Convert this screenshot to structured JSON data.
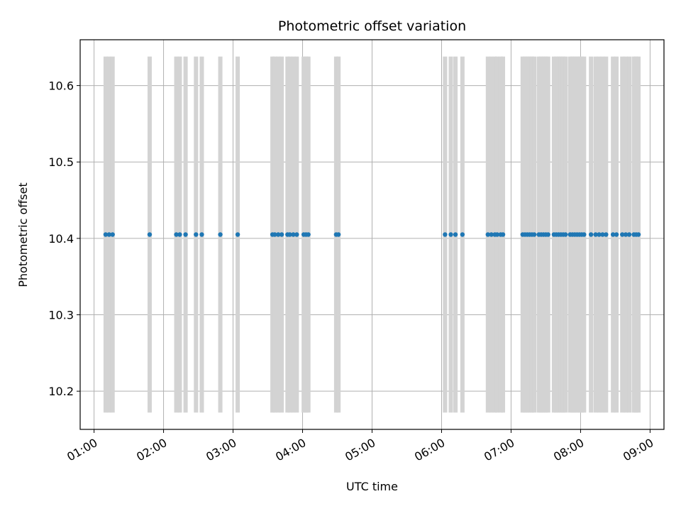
{
  "chart_data": {
    "type": "scatter",
    "title": "Photometric offset variation",
    "xlabel": "UTC time",
    "ylabel": "Photometric offset",
    "x_axis_type": "time",
    "xlim": [
      "00:48",
      "09:12"
    ],
    "ylim": [
      10.15,
      10.66
    ],
    "x_ticks": [
      "01:00",
      "02:00",
      "03:00",
      "04:00",
      "05:00",
      "06:00",
      "07:00",
      "08:00",
      "09:00"
    ],
    "y_ticks": [
      10.2,
      10.3,
      10.4,
      10.5,
      10.6
    ],
    "grid": true,
    "legend": "none",
    "colors": {
      "points": "#1f77b4",
      "bands": "#d3d3d3",
      "grid": "#b0b0b0"
    },
    "bands": {
      "y_range": [
        10.172,
        10.638
      ],
      "x": [
        "01:10",
        "01:13",
        "01:16",
        "01:48",
        "02:11",
        "02:14",
        "02:19",
        "02:28",
        "02:33",
        "02:49",
        "03:04",
        "03:34",
        "03:36",
        "03:39",
        "03:42",
        "03:47",
        "03:49",
        "03:52",
        "03:55",
        "04:01",
        "04:03",
        "04:05",
        "04:29",
        "04:31",
        "06:03",
        "06:08",
        "06:12",
        "06:18",
        "06:40",
        "06:43",
        "06:46",
        "06:48",
        "06:51",
        "06:53",
        "07:10",
        "07:12",
        "07:14",
        "07:16",
        "07:18",
        "07:20",
        "07:24",
        "07:26",
        "07:28",
        "07:30",
        "07:32",
        "07:37",
        "07:39",
        "07:41",
        "07:43",
        "07:45",
        "07:47",
        "07:51",
        "07:53",
        "07:55",
        "07:57",
        "07:59",
        "08:01",
        "08:03",
        "08:09",
        "08:13",
        "08:16",
        "08:19",
        "08:22",
        "08:28",
        "08:31",
        "08:36",
        "08:39",
        "08:42",
        "08:46",
        "08:48",
        "08:50"
      ]
    },
    "series": [
      {
        "x": [
          "01:10",
          "01:13",
          "01:16",
          "01:48",
          "02:11",
          "02:14",
          "02:19",
          "02:28",
          "02:33",
          "02:49",
          "03:04",
          "03:34",
          "03:36",
          "03:39",
          "03:42",
          "03:47",
          "03:49",
          "03:52",
          "03:55",
          "04:01",
          "04:03",
          "04:05",
          "04:29",
          "04:31",
          "06:03",
          "06:08",
          "06:12",
          "06:18",
          "06:40",
          "06:43",
          "06:46",
          "06:48",
          "06:51",
          "06:53",
          "07:10",
          "07:12",
          "07:14",
          "07:16",
          "07:18",
          "07:20",
          "07:24",
          "07:26",
          "07:28",
          "07:30",
          "07:32",
          "07:37",
          "07:39",
          "07:41",
          "07:43",
          "07:45",
          "07:47",
          "07:51",
          "07:53",
          "07:55",
          "07:57",
          "07:59",
          "08:01",
          "08:03",
          "08:09",
          "08:13",
          "08:16",
          "08:19",
          "08:22",
          "08:28",
          "08:31",
          "08:36",
          "08:39",
          "08:42",
          "08:46",
          "08:48",
          "08:50"
        ],
        "y": 10.405
      }
    ]
  }
}
